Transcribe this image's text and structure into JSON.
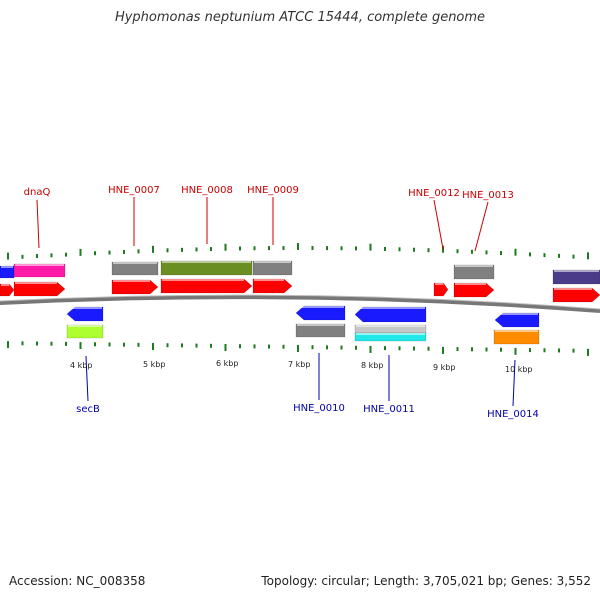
{
  "title": "Hyphomonas neptunium ATCC 15444, complete genome",
  "accession": "Accession: NC_008358",
  "topology": "Topology: circular; Length: 3,705,021 bp; Genes: 3,552",
  "scale_labels": [
    "4 kbp",
    "5 kbp",
    "6 kbp",
    "7 kbp",
    "8 kbp",
    "9 kbp",
    "10 kbp"
  ],
  "labels_top": [
    "dnaQ",
    "HNE_0007",
    "HNE_0008",
    "HNE_0009",
    "HNE_0012",
    "HNE_0013"
  ],
  "labels_bottom": [
    "secB",
    "HNE_0010",
    "HNE_0011",
    "HNE_0014"
  ],
  "colors": {
    "red": "#ff0000",
    "blue": "#1a1aff",
    "grey": "#808080",
    "olive": "#6b8e23",
    "pink": "#ff1aa8",
    "lime": "#adff2f",
    "cyan": "#20e8e8",
    "silver": "#c8c8c8",
    "orange": "#ff8c00",
    "slate": "#4b3c8a",
    "tick": "#1e7a1e",
    "label_top": "#cc0000",
    "label_bottom": "#0000aa"
  }
}
